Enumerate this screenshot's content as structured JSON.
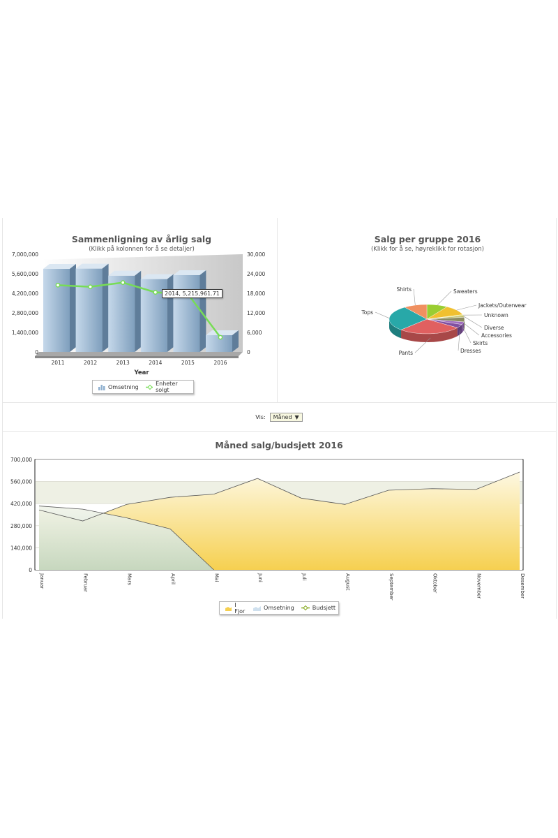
{
  "yearly": {
    "title": "Sammenligning av årlig salg",
    "subtitle": "(Klikk på kolonnen for å se detaljer)",
    "xlabel": "Year",
    "legend": {
      "revenue_label": "Omsetning",
      "units_label": "Enheter solgt"
    },
    "tooltip": "2014, 5,215,961.71"
  },
  "group": {
    "title": "Salg per gruppe 2016",
    "subtitle": "(Klikk for å se, høyreklikk for rotasjon)"
  },
  "filter": {
    "label": "Vis:",
    "selected": "Måned"
  },
  "monthly": {
    "title": "Måned salg/budsjett 2016",
    "legend": {
      "last_year": "I Fjor",
      "revenue": "Omsetning",
      "budget": "Budsjett"
    }
  },
  "chart_data": [
    {
      "type": "bar",
      "title": "Sammenligning av årlig salg",
      "subtitle": "(Klikk på kolonnen for å se detaljer)",
      "xlabel": "Year",
      "categories": [
        "2011",
        "2012",
        "2013",
        "2014",
        "2015",
        "2016"
      ],
      "series": [
        {
          "name": "Omsetning",
          "type": "bar",
          "axis": "left",
          "values": [
            5950000,
            5970000,
            5460000,
            5215961.71,
            5500000,
            1200000
          ]
        },
        {
          "name": "Enheter solgt",
          "type": "line",
          "axis": "right",
          "values": [
            20500,
            20000,
            21300,
            18300,
            17800,
            4500
          ]
        }
      ],
      "ylim": [
        0,
        7000000
      ],
      "yticks": [
        "0",
        "1,400,000",
        "2,800,000",
        "4,200,000",
        "5,600,000",
        "7,000,000"
      ],
      "y2lim": [
        0,
        30000
      ],
      "y2ticks": [
        "0",
        "6,000",
        "12,000",
        "18,000",
        "24,000",
        "30,000"
      ],
      "colors": {
        "bar": "#8fb0cf",
        "line": "#77dd55"
      }
    },
    {
      "type": "pie",
      "title": "Salg per gruppe 2016",
      "subtitle": "(Klikk for å se, høyreklikk for rotasjon)",
      "slices": [
        {
          "label": "Sweaters",
          "value": 9,
          "color": "#9acd32"
        },
        {
          "label": "Jackets/Outerwear",
          "value": 11,
          "color": "#f0c030"
        },
        {
          "label": "Unknown",
          "value": 1,
          "color": "#e8e060"
        },
        {
          "label": "Diverse",
          "value": 2,
          "color": "#c0c070"
        },
        {
          "label": "Accessories",
          "value": 5,
          "color": "#8b8b60"
        },
        {
          "label": "Skirts",
          "value": 3,
          "color": "#a06cc0"
        },
        {
          "label": "Dresses",
          "value": 4,
          "color": "#8050a0"
        },
        {
          "label": "Pants",
          "value": 27,
          "color": "#e06060"
        },
        {
          "label": "Tops",
          "value": 28,
          "color": "#28a8a8"
        },
        {
          "label": "Shirts",
          "value": 10,
          "color": "#f09060"
        }
      ]
    },
    {
      "type": "area",
      "title": "Måned salg/budsjett 2016",
      "categories": [
        "Januar",
        "Februar",
        "Mars",
        "April",
        "Mai",
        "Juni",
        "Juli",
        "August",
        "September",
        "Oktober",
        "November",
        "Desember"
      ],
      "series": [
        {
          "name": "I Fjor",
          "values": [
            380000,
            310000,
            415000,
            460000,
            480000,
            580000,
            455000,
            415000,
            505000,
            515000,
            510000,
            620000
          ],
          "color": "#f5d060"
        },
        {
          "name": "Omsetning",
          "values": [
            405000,
            385000,
            330000,
            260000,
            0,
            null,
            null,
            null,
            null,
            null,
            null,
            null
          ],
          "color": "#cfe0ee"
        },
        {
          "name": "Budsjett",
          "values": [
            null,
            null,
            null,
            null,
            null,
            null,
            null,
            null,
            null,
            null,
            null,
            null
          ],
          "color": "#88aa22"
        }
      ],
      "ylim": [
        0,
        700000
      ],
      "yticks": [
        "0",
        "140,000",
        "280,000",
        "420,000",
        "560,000",
        "700,000"
      ]
    }
  ]
}
